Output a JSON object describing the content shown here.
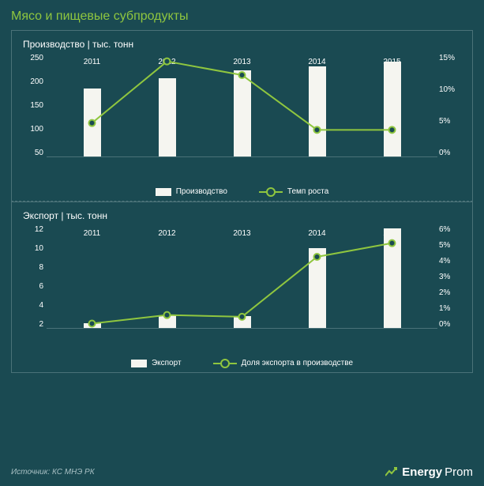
{
  "title": "Мясо и пищевые субпродукты",
  "source": "Источник: КС МНЭ РК",
  "brand": {
    "name1": "Energy",
    "name2": "Prom"
  },
  "colors": {
    "background": "#1a4a52",
    "title": "#8fc63f",
    "text": "#ffffff",
    "border": "#4a7278",
    "bar": "#f5f5f0",
    "line": "#8fc63f",
    "marker_fill": "#1a4a52"
  },
  "chart1": {
    "subtitle": "Производство | тыс. тонн",
    "type": "bar+line",
    "categories": [
      "2011",
      "2012",
      "2013",
      "2014",
      "2015"
    ],
    "left_axis": {
      "min": 0,
      "max": 250,
      "step": 50,
      "ticks": [
        "250",
        "200",
        "150",
        "100",
        "50"
      ]
    },
    "right_axis": {
      "min": 0,
      "max": 15,
      "step": 5,
      "ticks": [
        "15%",
        "10%",
        "5%",
        "0%"
      ]
    },
    "bars": {
      "label": "Производство",
      "values": [
        165,
        190,
        210,
        220,
        230
      ],
      "color": "#f5f5f0",
      "width": 22
    },
    "line": {
      "label": "Темп роста",
      "values": [
        5,
        14,
        12,
        4,
        4
      ],
      "color": "#8fc63f",
      "marker": "circle",
      "marker_size": 8,
      "line_width": 2
    }
  },
  "chart2": {
    "subtitle": "Экспорт | тыс. тонн",
    "type": "bar+line",
    "categories": [
      "2011",
      "2012",
      "2013",
      "2014",
      "2015"
    ],
    "left_axis": {
      "min": 0,
      "max": 12,
      "step": 2,
      "ticks": [
        "12",
        "10",
        "8",
        "6",
        "4",
        "2"
      ]
    },
    "right_axis": {
      "min": 0,
      "max": 6,
      "step": 1,
      "ticks": [
        "6%",
        "5%",
        "4%",
        "3%",
        "2%",
        "1%",
        "0%"
      ]
    },
    "bars": {
      "label": "Экспорт",
      "values": [
        0.6,
        1.5,
        1.4,
        9.3,
        11.6
      ],
      "color": "#f5f5f0",
      "width": 22
    },
    "line": {
      "label": "Доля экспорта в производстве",
      "values": [
        0.3,
        0.8,
        0.7,
        4.2,
        5.0
      ],
      "color": "#8fc63f",
      "marker": "circle",
      "marker_size": 8,
      "line_width": 2
    }
  }
}
